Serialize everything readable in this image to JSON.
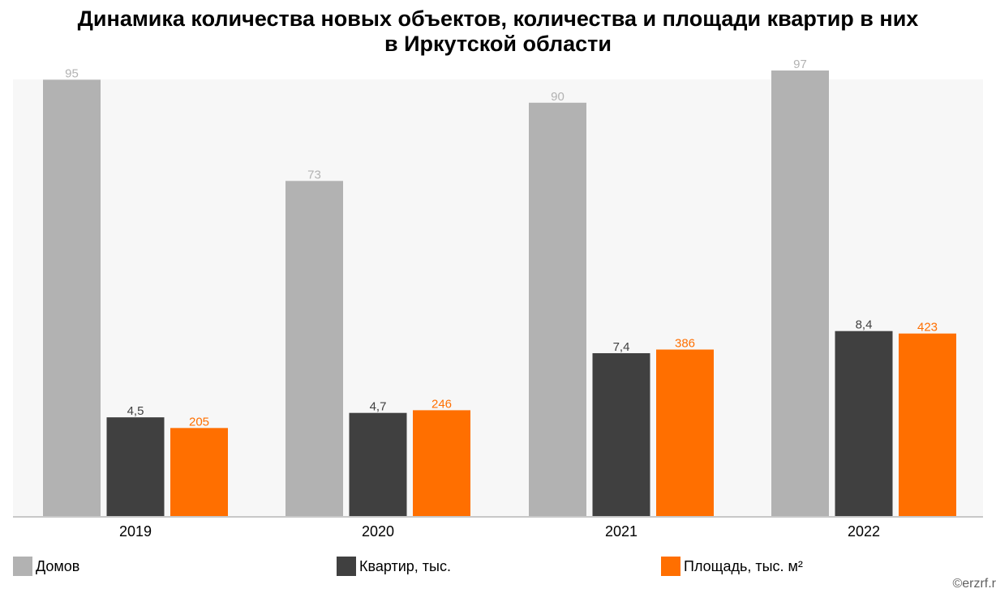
{
  "chart_data": {
    "type": "bar",
    "title": "Динамика количества новых объектов, количества и площади квартир в них",
    "subtitle": "в Иркутской области",
    "categories": [
      "2019",
      "2020",
      "2021",
      "2022"
    ],
    "series": [
      {
        "name": "Домов",
        "color": "#b2b2b2",
        "label_color": "#b2b2b2",
        "values": [
          95,
          73,
          90,
          97
        ],
        "labels": [
          "95",
          "73",
          "90",
          "97"
        ]
      },
      {
        "name": "Квартир, тыс.",
        "color": "#404040",
        "label_color": "#404040",
        "values": [
          4.5,
          4.7,
          7.4,
          8.4
        ],
        "labels": [
          "4,5",
          "4,7",
          "7,4",
          "8,4"
        ]
      },
      {
        "name": "Площадь, тыс. м²",
        "color": "#ff6f00",
        "label_color": "#ff6f00",
        "values": [
          205,
          246,
          386,
          423
        ],
        "labels": [
          "205",
          "246",
          "386",
          "423"
        ]
      }
    ],
    "grid": false,
    "legend_position": "bottom",
    "plot_background": "#f7f7f7"
  },
  "copyright": "©erzrf.r"
}
